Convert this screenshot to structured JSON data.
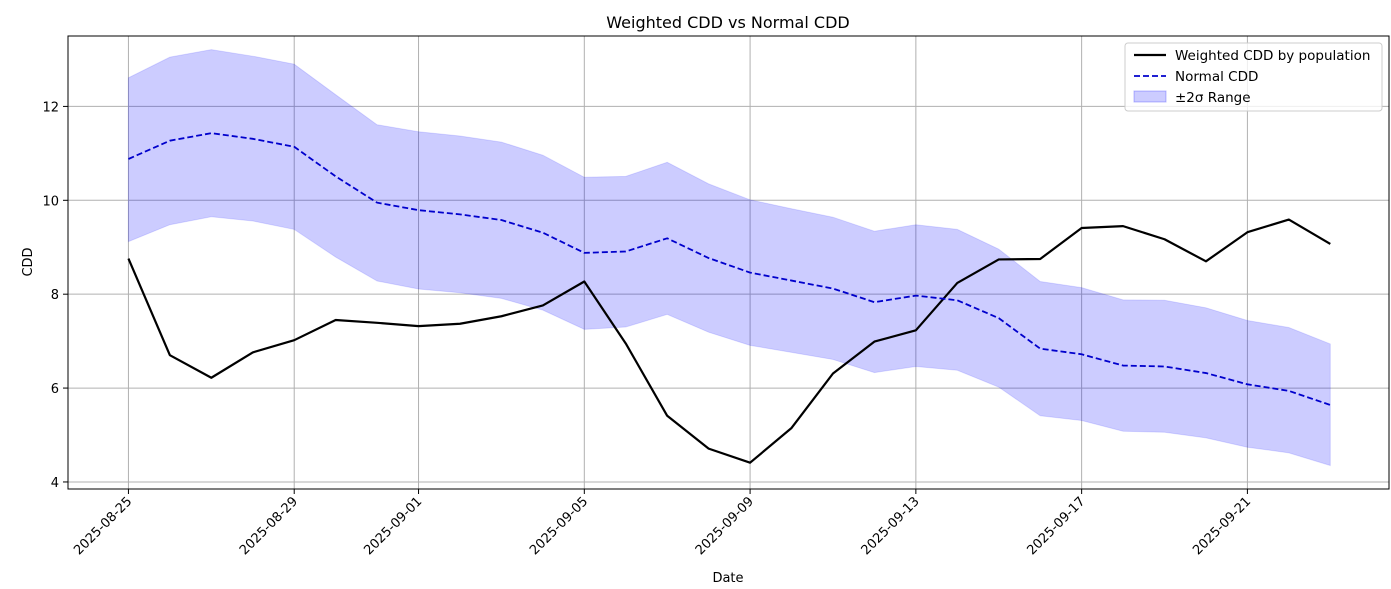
{
  "chart_data": {
    "type": "line",
    "title": "Weighted CDD vs Normal CDD",
    "xlabel": "Date",
    "ylabel": "CDD",
    "x": [
      "2025-08-25",
      "2025-08-26",
      "2025-08-27",
      "2025-08-28",
      "2025-08-29",
      "2025-08-30",
      "2025-08-31",
      "2025-09-01",
      "2025-09-02",
      "2025-09-03",
      "2025-09-04",
      "2025-09-05",
      "2025-09-06",
      "2025-09-07",
      "2025-09-08",
      "2025-09-09",
      "2025-09-10",
      "2025-09-11",
      "2025-09-12",
      "2025-09-13",
      "2025-09-14",
      "2025-09-15",
      "2025-09-16",
      "2025-09-17",
      "2025-09-18",
      "2025-09-19",
      "2025-09-20",
      "2025-09-21",
      "2025-09-22",
      "2025-09-23"
    ],
    "x_ticks": [
      "2025-08-25",
      "2025-08-29",
      "2025-09-01",
      "2025-09-05",
      "2025-09-09",
      "2025-09-13",
      "2025-09-17",
      "2025-09-21"
    ],
    "y_ticks": [
      4,
      6,
      8,
      10,
      12
    ],
    "ylim": [
      3.85,
      13.5
    ],
    "xlim": [
      "2025-08-23T13:00",
      "2025-09-24T10:00"
    ],
    "grid": true,
    "legend_position": "top-right",
    "series": [
      {
        "name": "Weighted CDD by population",
        "style": "solid",
        "color": "#000000",
        "values": [
          8.76,
          6.7,
          6.22,
          6.76,
          7.02,
          7.45,
          7.39,
          7.32,
          7.37,
          7.53,
          7.76,
          8.27,
          6.95,
          5.41,
          4.71,
          4.41,
          5.15,
          6.31,
          6.99,
          7.23,
          8.24,
          8.74,
          8.75,
          9.41,
          9.45,
          9.17,
          8.7,
          9.32,
          9.59,
          9.07
        ]
      },
      {
        "name": "Normal CDD",
        "style": "dashed",
        "color": "#0000cc",
        "values": [
          10.88,
          11.27,
          11.43,
          11.31,
          11.14,
          10.51,
          9.95,
          9.79,
          9.7,
          9.58,
          9.31,
          8.88,
          8.91,
          9.19,
          8.77,
          8.46,
          8.29,
          8.12,
          7.83,
          7.97,
          7.87,
          7.49,
          6.84,
          6.72,
          6.48,
          6.46,
          6.32,
          6.08,
          5.94,
          5.64
        ]
      }
    ],
    "band": {
      "name": "±2σ Range",
      "color": "#0000ff",
      "opacity": 0.2,
      "upper": [
        12.61,
        13.05,
        13.21,
        13.07,
        12.9,
        12.25,
        11.61,
        11.46,
        11.37,
        11.24,
        10.96,
        10.49,
        10.51,
        10.81,
        10.35,
        10.01,
        9.82,
        9.64,
        9.34,
        9.48,
        9.38,
        8.96,
        8.27,
        8.14,
        7.88,
        7.87,
        7.71,
        7.44,
        7.29,
        6.94
      ],
      "lower": [
        9.12,
        9.48,
        9.65,
        9.56,
        9.38,
        8.79,
        8.28,
        8.11,
        8.03,
        7.91,
        7.66,
        7.25,
        7.3,
        7.57,
        7.19,
        6.91,
        6.76,
        6.61,
        6.33,
        6.46,
        6.38,
        6.02,
        5.41,
        5.31,
        5.08,
        5.06,
        4.94,
        4.74,
        4.62,
        4.35
      ]
    }
  }
}
